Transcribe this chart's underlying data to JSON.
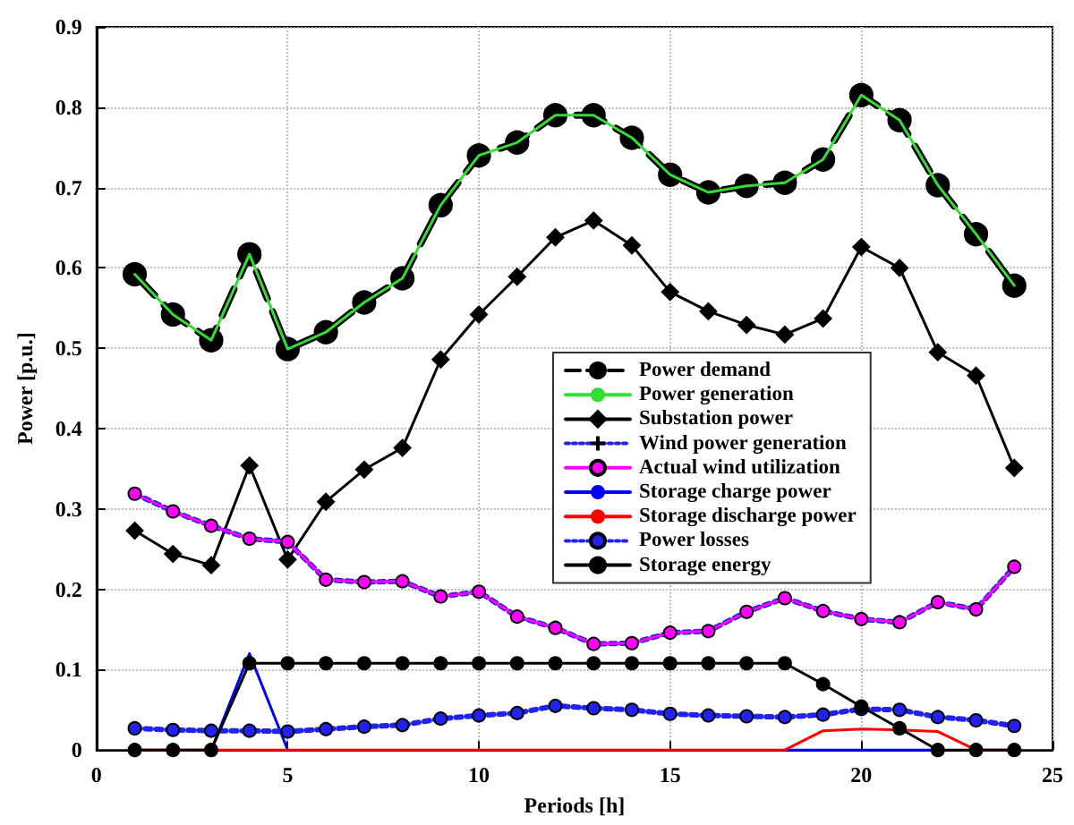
{
  "chart_data": {
    "type": "line",
    "xlabel": "Periods [h]",
    "ylabel": "Power [p.u.]",
    "x": [
      1,
      2,
      3,
      4,
      5,
      6,
      7,
      8,
      9,
      10,
      11,
      12,
      13,
      14,
      15,
      16,
      17,
      18,
      19,
      20,
      21,
      22,
      23,
      24
    ],
    "xlim": [
      0,
      25
    ],
    "xticks": [
      0,
      5,
      10,
      15,
      20,
      25
    ],
    "ylim": [
      0,
      0.9
    ],
    "yticks": [
      0,
      0.1,
      0.2,
      0.3,
      0.4,
      0.5,
      0.6,
      0.7,
      0.8,
      0.9
    ],
    "grid": true,
    "legend": "center",
    "series": [
      {
        "name": "Power demand",
        "color": "#000000",
        "marker": "circle",
        "line_style": "dashed",
        "values": [
          0.592,
          0.542,
          0.51,
          0.617,
          0.499,
          0.52,
          0.557,
          0.587,
          0.678,
          0.74,
          0.756,
          0.79,
          0.79,
          0.762,
          0.716,
          0.694,
          0.702,
          0.706,
          0.735,
          0.815,
          0.784,
          0.703,
          0.642,
          0.578
        ]
      },
      {
        "name": "Power generation",
        "color": "#33dd33",
        "marker": "none",
        "line_style": "solid",
        "values": [
          0.592,
          0.542,
          0.51,
          0.617,
          0.499,
          0.52,
          0.557,
          0.587,
          0.678,
          0.74,
          0.756,
          0.79,
          0.79,
          0.762,
          0.716,
          0.694,
          0.702,
          0.706,
          0.735,
          0.815,
          0.784,
          0.703,
          0.642,
          0.578
        ]
      },
      {
        "name": "Substation power",
        "color": "#000000",
        "marker": "diamond",
        "line_style": "solid",
        "values": [
          0.273,
          0.244,
          0.23,
          0.354,
          0.237,
          0.309,
          0.349,
          0.376,
          0.486,
          0.542,
          0.589,
          0.638,
          0.659,
          0.628,
          0.57,
          0.546,
          0.529,
          0.517,
          0.537,
          0.626,
          0.6,
          0.495,
          0.466,
          0.351
        ]
      },
      {
        "name": "Wind power generation",
        "color": "#2222ee",
        "marker": "cross",
        "line_style": "dotted",
        "values": [
          0.319,
          0.297,
          0.279,
          0.263,
          0.259,
          0.212,
          0.209,
          0.21,
          0.191,
          0.197,
          0.166,
          0.152,
          0.132,
          0.133,
          0.146,
          0.148,
          0.172,
          0.189,
          0.173,
          0.163,
          0.159,
          0.184,
          0.175,
          0.228
        ]
      },
      {
        "name": "Actual wind utilization",
        "color": "#ff00ff",
        "marker": "circle",
        "line_style": "solid",
        "values": [
          0.319,
          0.297,
          0.279,
          0.263,
          0.259,
          0.212,
          0.209,
          0.21,
          0.191,
          0.197,
          0.166,
          0.152,
          0.132,
          0.133,
          0.146,
          0.148,
          0.172,
          0.189,
          0.173,
          0.163,
          0.159,
          0.184,
          0.175,
          0.228
        ]
      },
      {
        "name": "Storage charge power",
        "color": "#0000ff",
        "marker": "none",
        "line_style": "solid",
        "values": [
          null,
          null,
          0,
          0.12,
          0,
          null,
          null,
          null,
          null,
          null,
          null,
          null,
          null,
          null,
          null,
          null,
          null,
          0,
          0,
          0,
          0,
          0,
          null,
          null
        ]
      },
      {
        "name": "Storage discharge power",
        "color": "#ff0000",
        "marker": "none",
        "line_style": "solid",
        "values": [
          0,
          0,
          0,
          0,
          0,
          0,
          0,
          0,
          0,
          0,
          0,
          0,
          0,
          0,
          0,
          0,
          0,
          0,
          0.024,
          0.026,
          0.025,
          0.023,
          0,
          0
        ]
      },
      {
        "name": "Power losses",
        "color": "#2222ee",
        "marker": "circle",
        "line_style": "dotted",
        "values": [
          0.027,
          0.025,
          0.024,
          0.024,
          0.023,
          0.026,
          0.029,
          0.031,
          0.039,
          0.043,
          0.046,
          0.055,
          0.052,
          0.05,
          0.045,
          0.043,
          0.042,
          0.041,
          0.044,
          0.051,
          0.05,
          0.041,
          0.037,
          0.03
        ]
      },
      {
        "name": "Storage energy",
        "color": "#000000",
        "marker": "circle",
        "line_style": "solid",
        "values": [
          0,
          0,
          0,
          0.108,
          0.108,
          0.108,
          0.108,
          0.108,
          0.108,
          0.108,
          0.108,
          0.108,
          0.108,
          0.108,
          0.108,
          0.108,
          0.108,
          0.108,
          0.082,
          0.054,
          0.027,
          0,
          0,
          0
        ]
      }
    ]
  }
}
